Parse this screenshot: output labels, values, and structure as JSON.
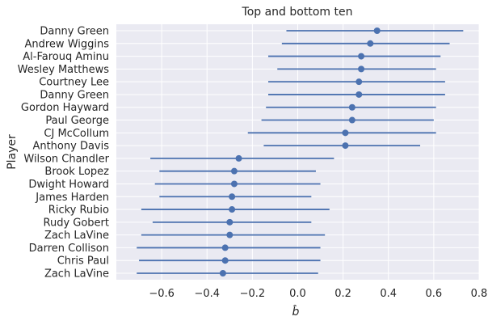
{
  "chart_data": {
    "type": "scatter",
    "title": "Top and bottom ten",
    "xlabel": "b̂",
    "ylabel": "Player",
    "xlim": [
      -0.8,
      0.8
    ],
    "xticks": [
      -0.6,
      -0.4,
      -0.2,
      0.0,
      0.2,
      0.4,
      0.6,
      0.8
    ],
    "xtick_labels": [
      "−0.6",
      "−0.4",
      "−0.2",
      "0.0",
      "0.2",
      "0.4",
      "0.6",
      "0.8"
    ],
    "grid": true,
    "accent_color": "#4c72b0",
    "points": [
      {
        "player": "Danny Green",
        "estimate": 0.35,
        "low": -0.05,
        "high": 0.73
      },
      {
        "player": "Andrew Wiggins",
        "estimate": 0.32,
        "low": -0.07,
        "high": 0.67
      },
      {
        "player": "Al-Farouq Aminu",
        "estimate": 0.28,
        "low": -0.13,
        "high": 0.63
      },
      {
        "player": "Wesley Matthews",
        "estimate": 0.28,
        "low": -0.09,
        "high": 0.61
      },
      {
        "player": "Courtney Lee",
        "estimate": 0.27,
        "low": -0.13,
        "high": 0.65
      },
      {
        "player": "Danny Green",
        "estimate": 0.27,
        "low": -0.13,
        "high": 0.65
      },
      {
        "player": "Gordon Hayward",
        "estimate": 0.24,
        "low": -0.14,
        "high": 0.61
      },
      {
        "player": "Paul George",
        "estimate": 0.24,
        "low": -0.16,
        "high": 0.6
      },
      {
        "player": "CJ McCollum",
        "estimate": 0.21,
        "low": -0.22,
        "high": 0.61
      },
      {
        "player": "Anthony Davis",
        "estimate": 0.21,
        "low": -0.15,
        "high": 0.54
      },
      {
        "player": "Wilson Chandler",
        "estimate": -0.26,
        "low": -0.65,
        "high": 0.16
      },
      {
        "player": "Brook Lopez",
        "estimate": -0.28,
        "low": -0.61,
        "high": 0.08
      },
      {
        "player": "Dwight Howard",
        "estimate": -0.28,
        "low": -0.63,
        "high": 0.1
      },
      {
        "player": "James Harden",
        "estimate": -0.29,
        "low": -0.61,
        "high": 0.06
      },
      {
        "player": "Ricky Rubio",
        "estimate": -0.29,
        "low": -0.69,
        "high": 0.14
      },
      {
        "player": "Rudy Gobert",
        "estimate": -0.3,
        "low": -0.64,
        "high": 0.06
      },
      {
        "player": "Zach LaVine",
        "estimate": -0.3,
        "low": -0.69,
        "high": 0.12
      },
      {
        "player": "Darren Collison",
        "estimate": -0.32,
        "low": -0.71,
        "high": 0.1
      },
      {
        "player": "Chris Paul",
        "estimate": -0.32,
        "low": -0.7,
        "high": 0.1
      },
      {
        "player": "Zach LaVine",
        "estimate": -0.33,
        "low": -0.71,
        "high": 0.09
      }
    ]
  }
}
